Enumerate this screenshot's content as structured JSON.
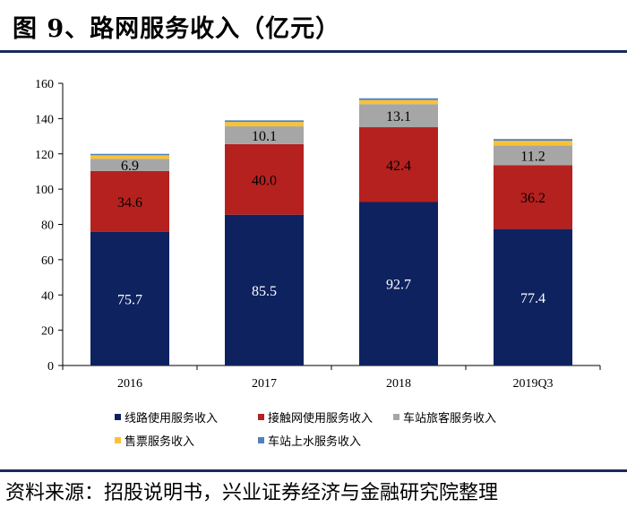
{
  "title": "图 9、路网服务收入（亿元）",
  "source": "资料来源：招股说明书，兴业证券经济与金融研究院整理",
  "chart_data": {
    "type": "bar",
    "stacked": true,
    "title": "图 9、路网服务收入（亿元）",
    "categories": [
      "2016",
      "2017",
      "2018",
      "2019Q3"
    ],
    "ylim": [
      0,
      160
    ],
    "yticks": [
      "0",
      "20",
      "40",
      "60",
      "80",
      "100",
      "120",
      "140",
      "160"
    ],
    "series": [
      {
        "name": "线路使用服务收入",
        "color": "#0e2260",
        "values": [
          75.7,
          85.5,
          92.7,
          77.4
        ],
        "labels": [
          "75.7",
          "85.5",
          "92.7",
          "77.4"
        ],
        "label_color": "#ffffff"
      },
      {
        "name": "接触网使用服务收入",
        "color": "#b5211e",
        "values": [
          34.6,
          40.0,
          42.4,
          36.2
        ],
        "labels": [
          "34.6",
          "40.0",
          "42.4",
          "36.2"
        ],
        "label_color": "#000000"
      },
      {
        "name": "车站旅客服务收入",
        "color": "#a6a6a6",
        "values": [
          6.9,
          10.1,
          13.1,
          11.2
        ],
        "labels": [
          "6.9",
          "10.1",
          "13.1",
          "11.2"
        ],
        "label_color": "#000000"
      },
      {
        "name": "售票服务收入",
        "color": "#f9c235",
        "values": [
          2.0,
          2.5,
          2.3,
          2.6
        ]
      },
      {
        "name": "车站上水服务收入",
        "color": "#4f81bd",
        "values": [
          0.8,
          0.9,
          1.0,
          1.0
        ]
      }
    ]
  }
}
